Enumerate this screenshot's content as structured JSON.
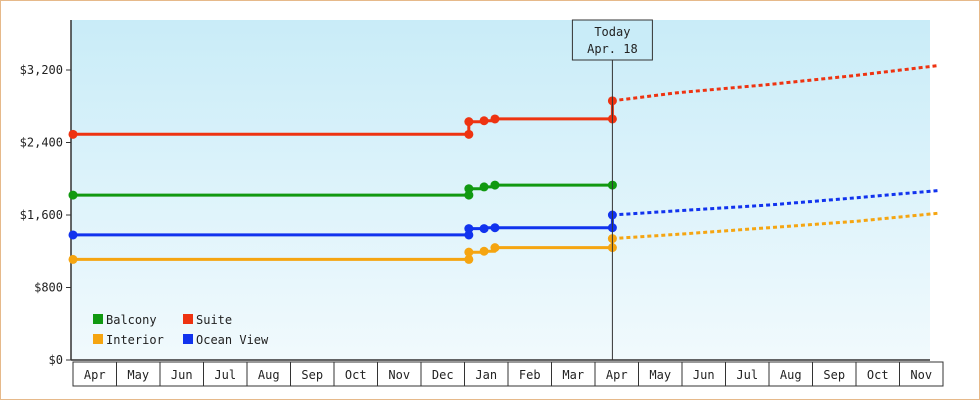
{
  "chart_data": {
    "type": "line",
    "title": "",
    "xlabel": "",
    "ylabel": "",
    "ylim": [
      0,
      3200
    ],
    "y_ticks": [
      {
        "value": 0,
        "label": "$0"
      },
      {
        "value": 800,
        "label": "$800"
      },
      {
        "value": 1600,
        "label": "$1,600"
      },
      {
        "value": 2400,
        "label": "$2,400"
      },
      {
        "value": 3200,
        "label": "$3,200"
      }
    ],
    "months": [
      "Apr",
      "May",
      "Jun",
      "Jul",
      "Aug",
      "Sep",
      "Oct",
      "Nov",
      "Dec",
      "Jan",
      "Feb",
      "Mar",
      "Apr",
      "May",
      "Jun",
      "Jul",
      "Aug",
      "Sep",
      "Oct",
      "Nov"
    ],
    "today": {
      "label": "Today",
      "date_label": "Apr. 18",
      "x": 12.4
    },
    "legend_placement": "bottom-left",
    "grid": false,
    "series": [
      {
        "name": "Balcony",
        "color": "#119911",
        "actual": [
          [
            0.0,
            1820
          ],
          [
            9.1,
            1820
          ],
          [
            9.1,
            1890
          ],
          [
            9.45,
            1890
          ],
          [
            9.45,
            1910
          ],
          [
            9.7,
            1910
          ],
          [
            9.7,
            1930
          ],
          [
            12.4,
            1930
          ]
        ],
        "markers": [
          [
            0.0,
            1820
          ],
          [
            9.1,
            1820
          ],
          [
            9.1,
            1890
          ],
          [
            9.45,
            1910
          ],
          [
            9.7,
            1930
          ],
          [
            12.4,
            1930
          ]
        ],
        "forecast": []
      },
      {
        "name": "Suite",
        "color": "#ee3311",
        "actual": [
          [
            0.0,
            2490
          ],
          [
            9.1,
            2490
          ],
          [
            9.1,
            2630
          ],
          [
            9.45,
            2630
          ],
          [
            9.45,
            2640
          ],
          [
            9.7,
            2640
          ],
          [
            9.7,
            2660
          ],
          [
            12.4,
            2660
          ]
        ],
        "markers": [
          [
            0.0,
            2490
          ],
          [
            9.1,
            2490
          ],
          [
            9.1,
            2630
          ],
          [
            9.45,
            2640
          ],
          [
            9.7,
            2660
          ],
          [
            12.4,
            2660
          ],
          [
            12.4,
            2860
          ]
        ],
        "forecast": [
          [
            12.4,
            2860
          ],
          [
            13.9,
            2950
          ],
          [
            16.0,
            3040
          ],
          [
            18.0,
            3140
          ],
          [
            19.9,
            3250
          ]
        ]
      },
      {
        "name": "Interior",
        "color": "#f5a511",
        "actual": [
          [
            0.0,
            1110
          ],
          [
            9.1,
            1110
          ],
          [
            9.1,
            1190
          ],
          [
            9.45,
            1190
          ],
          [
            9.45,
            1200
          ],
          [
            9.7,
            1200
          ],
          [
            9.7,
            1240
          ],
          [
            12.4,
            1240
          ]
        ],
        "markers": [
          [
            0.0,
            1110
          ],
          [
            9.1,
            1110
          ],
          [
            9.1,
            1190
          ],
          [
            9.45,
            1200
          ],
          [
            9.7,
            1240
          ],
          [
            12.4,
            1240
          ],
          [
            12.4,
            1340
          ]
        ],
        "forecast": [
          [
            12.4,
            1340
          ],
          [
            14.0,
            1390
          ],
          [
            16.0,
            1460
          ],
          [
            18.0,
            1530
          ],
          [
            19.9,
            1620
          ]
        ]
      },
      {
        "name": "Ocean View",
        "color": "#1133ee",
        "actual": [
          [
            0.0,
            1380
          ],
          [
            9.1,
            1380
          ],
          [
            9.1,
            1450
          ],
          [
            9.45,
            1450
          ],
          [
            9.45,
            1460
          ],
          [
            9.7,
            1460
          ],
          [
            9.7,
            1460
          ],
          [
            12.4,
            1460
          ]
        ],
        "markers": [
          [
            0.0,
            1380
          ],
          [
            9.1,
            1380
          ],
          [
            9.1,
            1450
          ],
          [
            9.45,
            1450
          ],
          [
            9.7,
            1460
          ],
          [
            12.4,
            1460
          ],
          [
            12.4,
            1600
          ]
        ],
        "forecast": [
          [
            12.4,
            1600
          ],
          [
            14.0,
            1650
          ],
          [
            16.0,
            1710
          ],
          [
            18.0,
            1790
          ],
          [
            19.9,
            1870
          ]
        ]
      }
    ]
  }
}
